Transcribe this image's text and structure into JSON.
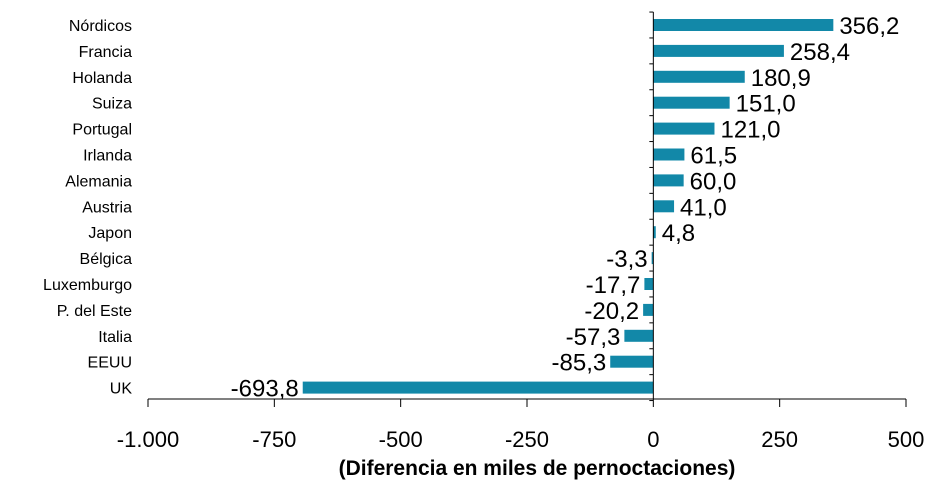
{
  "chart_data": {
    "type": "bar",
    "orientation": "horizontal",
    "categories": [
      "Nórdicos",
      "Francia",
      "Holanda",
      "Suiza",
      "Portugal",
      "Irlanda",
      "Alemania",
      "Austria",
      "Japon",
      "Bélgica",
      "Luxemburgo",
      "P. del Este",
      "Italia",
      "EEUU",
      "UK"
    ],
    "values": [
      356.2,
      258.4,
      180.9,
      151.0,
      121.0,
      61.5,
      60.0,
      41.0,
      4.8,
      -3.3,
      -17.7,
      -20.2,
      -57.3,
      -85.3,
      -693.8
    ],
    "value_labels": [
      "356,2",
      "258,4",
      "180,9",
      "151,0",
      "121,0",
      "61,5",
      "60,0",
      "41,0",
      "4,8",
      "-3,3",
      "-17,7",
      "-20,2",
      "-57,3",
      "-85,3",
      "-693,8"
    ],
    "xlim": [
      -1000,
      500
    ],
    "xticks": [
      -1000,
      -750,
      -500,
      -250,
      0,
      250,
      500
    ],
    "xtick_labels": [
      "-1.000",
      "-750",
      "-500",
      "-250",
      "0",
      "250",
      "500"
    ],
    "xlabel": "(Diferencia en miles de pernoctaciones)",
    "bar_color": "#1288A8",
    "grid": false
  }
}
